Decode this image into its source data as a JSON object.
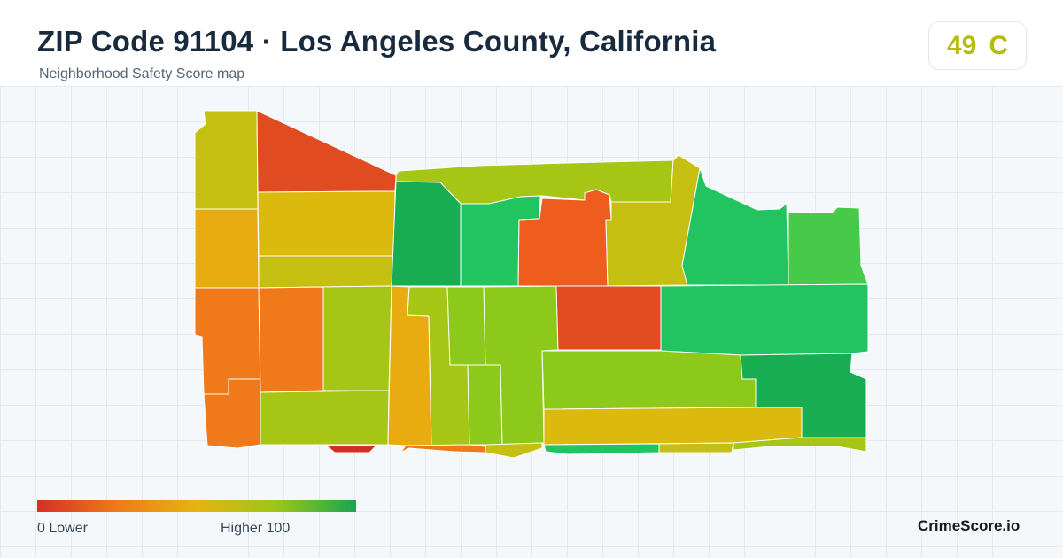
{
  "header": {
    "title": "ZIP Code 91104 · Los Angeles County, California",
    "subtitle": "Neighborhood Safety Score map"
  },
  "score": {
    "value": "49",
    "grade": "C",
    "color": "#b6bc12"
  },
  "legend": {
    "low_label": "0  Lower",
    "high_label": "Higher  100",
    "gradient_colors": [
      "#d62f27",
      "#ee7a1a",
      "#e5b410",
      "#9bc617",
      "#18a550"
    ]
  },
  "brand": "CrimeScore.io",
  "map": {
    "region": "ZIP Code 91104",
    "palette": {
      "red": "#e14b22",
      "red_orange": "#ee5d1e",
      "orange": "#f07a1a",
      "amber": "#e9ac10",
      "yellow": "#dcb90d",
      "olive": "#c4bf10",
      "yellow_green": "#a6c515",
      "lime": "#8dc91a",
      "green": "#22c45f",
      "dark_green": "#18ad52",
      "light_green": "#47c94a",
      "deep_red": "#d42c26"
    }
  }
}
